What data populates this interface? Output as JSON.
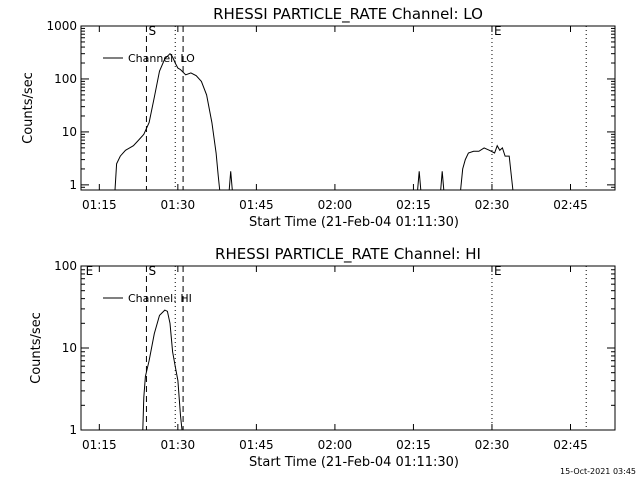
{
  "footer_timestamp": "15-Oct-2021 03:45",
  "chart_data": [
    {
      "type": "line",
      "title": "RHESSI PARTICLE_RATE Channel: LO",
      "xlabel": "Start Time (21-Feb-04 01:11:30)",
      "ylabel": "Counts/sec",
      "y_scale": "log",
      "ylim": [
        0.8,
        1000
      ],
      "xlim_minutes": [
        0,
        102
      ],
      "x_tick_labels": [
        "01:15",
        "01:30",
        "01:45",
        "02:00",
        "02:15",
        "02:30",
        "02:45"
      ],
      "x_tick_minutes": [
        3.5,
        18.5,
        33.5,
        48.5,
        63.5,
        78.5,
        93.5
      ],
      "y_tick_labels": [
        "1",
        "10",
        "100",
        "1000"
      ],
      "y_tick_values": [
        1,
        10,
        100,
        1000
      ],
      "legend": {
        "label": "Channel: LO",
        "placement": "top-left"
      },
      "event_markers": [
        {
          "label": "S",
          "minute": 12.5,
          "style": "dashed"
        },
        {
          "label": "",
          "minute": 18.0,
          "style": "dotted"
        },
        {
          "label": "",
          "minute": 19.5,
          "style": "dashed"
        },
        {
          "label": "E",
          "minute": 78.5,
          "style": "dotted"
        },
        {
          "label": "",
          "minute": 96.5,
          "style": "dotted"
        }
      ],
      "series": [
        {
          "name": "Channel: LO",
          "segments": [
            [
              [
                6.5,
                0.8
              ],
              [
                6.8,
                2.5
              ],
              [
                7.5,
                3.5
              ],
              [
                8.5,
                4.5
              ],
              [
                10,
                5.5
              ],
              [
                11,
                7
              ],
              [
                12,
                9
              ],
              [
                13,
                15
              ],
              [
                14,
                45
              ],
              [
                15,
                140
              ],
              [
                16,
                240
              ],
              [
                17,
                300
              ],
              [
                17.5,
                260
              ],
              [
                18,
                200
              ],
              [
                18.5,
                160
              ],
              [
                19,
                150
              ],
              [
                20,
                120
              ],
              [
                21,
                130
              ],
              [
                22,
                115
              ],
              [
                23,
                90
              ],
              [
                24,
                50
              ],
              [
                25,
                15
              ],
              [
                25.8,
                4
              ],
              [
                26.2,
                1.5
              ],
              [
                26.5,
                0.8
              ]
            ],
            [
              [
                28.3,
                0.8
              ],
              [
                28.6,
                1.8
              ],
              [
                28.9,
                0.8
              ]
            ],
            [
              [
                64.3,
                0.8
              ],
              [
                64.6,
                1.8
              ],
              [
                64.9,
                0.8
              ]
            ],
            [
              [
                68.7,
                0.8
              ],
              [
                69,
                1.8
              ],
              [
                69.3,
                0.8
              ]
            ],
            [
              [
                72.5,
                0.8
              ],
              [
                72.9,
                2.0
              ],
              [
                73.4,
                3.0
              ],
              [
                74,
                4.0
              ],
              [
                75,
                4.3
              ],
              [
                76,
                4.3
              ],
              [
                77,
                5.0
              ],
              [
                78,
                4.5
              ],
              [
                79,
                4.0
              ],
              [
                79.5,
                5.5
              ],
              [
                80,
                4.5
              ],
              [
                80.5,
                5.0
              ],
              [
                81,
                3.5
              ],
              [
                81.8,
                3.5
              ],
              [
                82.2,
                1.5
              ],
              [
                82.5,
                0.8
              ]
            ]
          ]
        }
      ]
    },
    {
      "type": "line",
      "title": "RHESSI PARTICLE_RATE Channel: HI",
      "xlabel": "Start Time (21-Feb-04 01:11:30)",
      "ylabel": "Counts/sec",
      "y_scale": "log",
      "ylim": [
        1,
        100
      ],
      "xlim_minutes": [
        0,
        102
      ],
      "x_tick_labels": [
        "01:15",
        "01:30",
        "01:45",
        "02:00",
        "02:15",
        "02:30",
        "02:45"
      ],
      "x_tick_minutes": [
        3.5,
        18.5,
        33.5,
        48.5,
        63.5,
        78.5,
        93.5
      ],
      "y_tick_labels": [
        "1",
        "10",
        "100"
      ],
      "y_tick_values": [
        1,
        10,
        100
      ],
      "legend": {
        "label": "Channel: HI",
        "placement": "top-left"
      },
      "event_markers": [
        {
          "label": "E",
          "minute": 0.5,
          "style": "none"
        },
        {
          "label": "S",
          "minute": 12.5,
          "style": "dashed"
        },
        {
          "label": "",
          "minute": 18.0,
          "style": "dotted"
        },
        {
          "label": "",
          "minute": 19.5,
          "style": "dashed"
        },
        {
          "label": "E",
          "minute": 78.5,
          "style": "dotted"
        },
        {
          "label": "",
          "minute": 96.5,
          "style": "dotted"
        }
      ],
      "series": [
        {
          "name": "Channel: HI",
          "segments": [
            [
              [
                11.8,
                1.0
              ],
              [
                12,
                2.5
              ],
              [
                12.3,
                4.5
              ],
              [
                13,
                7
              ],
              [
                14,
                15
              ],
              [
                15,
                25
              ],
              [
                16,
                29
              ],
              [
                16.5,
                28
              ],
              [
                17,
                20
              ],
              [
                17.5,
                9
              ],
              [
                18,
                6
              ],
              [
                18.5,
                4
              ],
              [
                19,
                1.5
              ],
              [
                19.3,
                1.0
              ]
            ]
          ]
        }
      ]
    }
  ]
}
